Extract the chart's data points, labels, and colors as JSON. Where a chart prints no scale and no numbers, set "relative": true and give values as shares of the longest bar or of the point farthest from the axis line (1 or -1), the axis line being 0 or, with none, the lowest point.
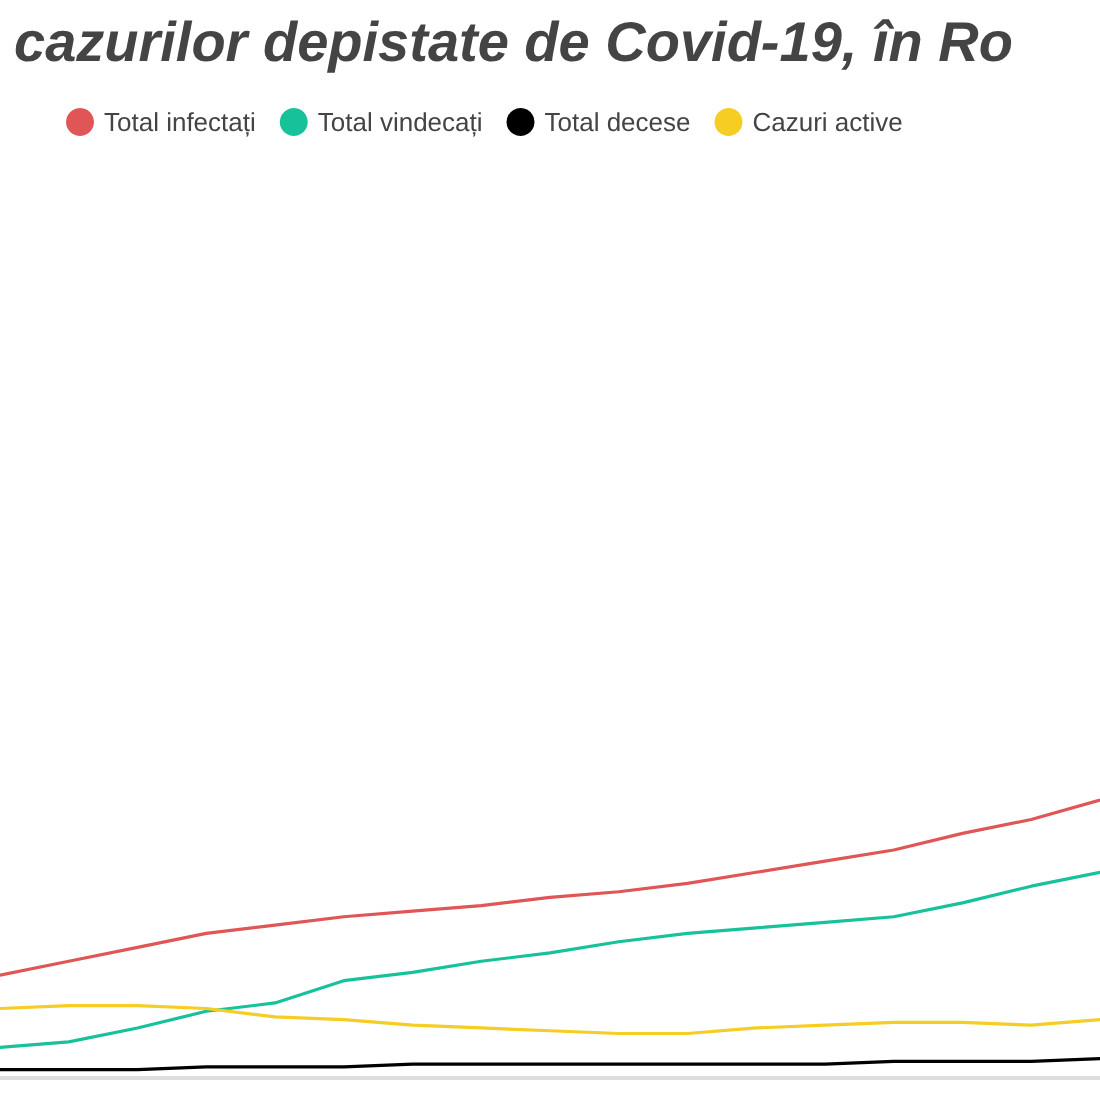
{
  "chart_data": {
    "type": "line",
    "title": "cazurilor depistate de Covid-19, în Ro",
    "relative": true,
    "legend": "top left",
    "marker": "none",
    "grid": false,
    "categories": [
      null,
      null,
      null,
      null,
      null,
      null,
      null,
      null,
      null,
      null,
      null,
      null,
      null,
      null,
      null,
      null,
      null
    ],
    "series": [
      {
        "name": "Total infectați",
        "color": "#e05555",
        "values": [
          0.37,
          0.42,
          0.47,
          0.52,
          0.55,
          0.58,
          0.6,
          0.62,
          0.65,
          0.67,
          0.7,
          0.74,
          0.78,
          0.82,
          0.88,
          0.93,
          1.0
        ]
      },
      {
        "name": "Total vindecați",
        "color": "#17c29b",
        "values": [
          0.11,
          0.13,
          0.18,
          0.24,
          0.27,
          0.35,
          0.38,
          0.42,
          0.45,
          0.49,
          0.52,
          0.54,
          0.56,
          0.58,
          0.63,
          0.69,
          0.74
        ]
      },
      {
        "name": "Total decese",
        "color": "#000000",
        "values": [
          0.03,
          0.03,
          0.03,
          0.04,
          0.04,
          0.04,
          0.05,
          0.05,
          0.05,
          0.05,
          0.05,
          0.05,
          0.05,
          0.06,
          0.06,
          0.06,
          0.07
        ]
      },
      {
        "name": "Cazuri active",
        "color": "#f5cd23",
        "values": [
          0.25,
          0.26,
          0.26,
          0.25,
          0.22,
          0.21,
          0.19,
          0.18,
          0.17,
          0.16,
          0.16,
          0.18,
          0.19,
          0.2,
          0.2,
          0.19,
          0.21
        ]
      }
    ]
  }
}
